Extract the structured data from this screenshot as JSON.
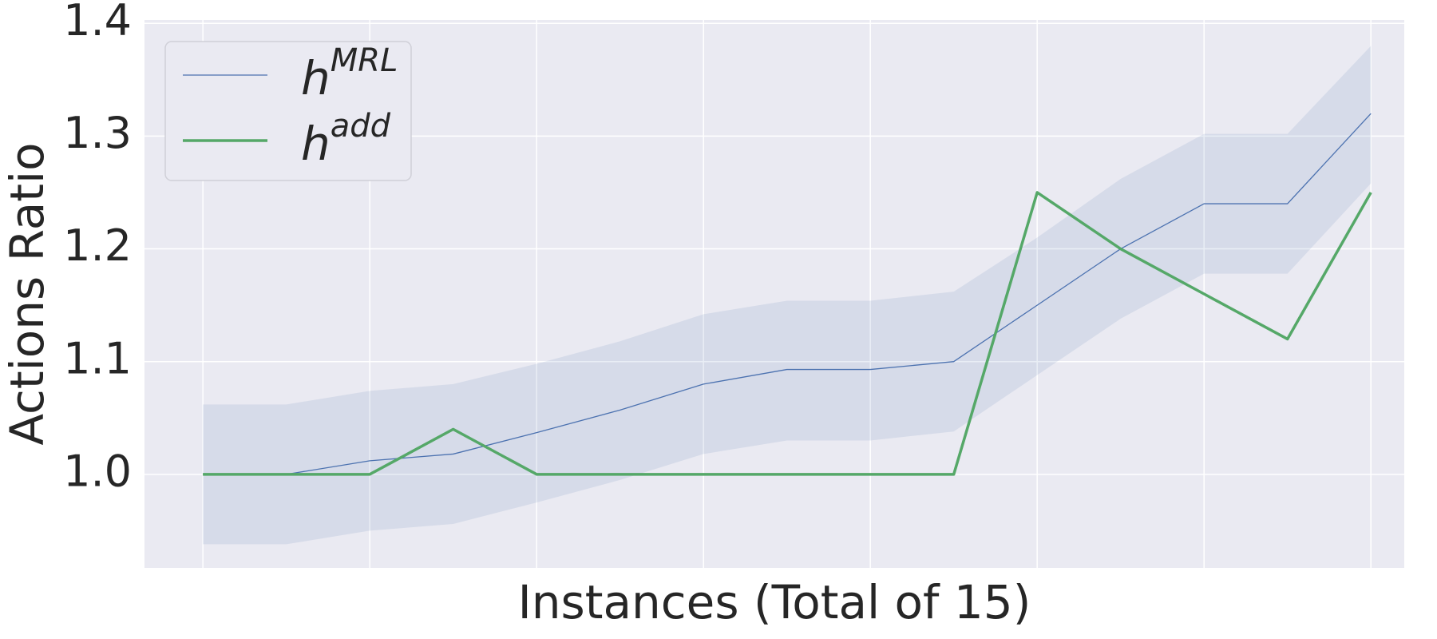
{
  "chart_data": {
    "type": "line",
    "xlabel": "Instances (Total of 15)",
    "ylabel": "Actions Ratio",
    "x": [
      0,
      1,
      2,
      3,
      4,
      5,
      6,
      7,
      8,
      9,
      10,
      11,
      12,
      13,
      14
    ],
    "xlim": [
      -0.7,
      14.4
    ],
    "xticks": [
      0,
      2,
      4,
      6,
      8,
      10,
      12,
      14
    ],
    "ylim": [
      0.917,
      1.403
    ],
    "yticks": [
      {
        "value": 1.0,
        "label": "1.0"
      },
      1.1,
      1.2,
      1.3,
      1.4
    ],
    "grid": true,
    "legend": "upper left",
    "series": [
      {
        "name": [
          "h",
          "MRL"
        ],
        "color": "#4c72b0",
        "line_width": 1.3,
        "values": [
          1.0,
          1.0,
          1.012,
          1.018,
          1.037,
          1.057,
          1.08,
          1.093,
          1.093,
          1.1,
          1.15,
          1.2,
          1.24,
          1.24,
          1.32
        ],
        "upper": [
          1.062,
          1.062,
          1.074,
          1.08,
          1.098,
          1.118,
          1.142,
          1.154,
          1.154,
          1.162,
          1.21,
          1.262,
          1.302,
          1.302,
          1.38
        ],
        "lower": [
          0.938,
          0.938,
          0.95,
          0.956,
          0.975,
          0.995,
          1.018,
          1.03,
          1.03,
          1.038,
          1.088,
          1.138,
          1.178,
          1.178,
          1.258
        ]
      },
      {
        "name": [
          "h",
          "add"
        ],
        "color": "#55a868",
        "line_width": 3.5,
        "values": [
          1.0,
          1.0,
          1.0,
          1.04,
          1.0,
          1.0,
          1.0,
          1.0,
          1.0,
          1.0,
          1.25,
          1.2,
          1.16,
          1.12,
          1.25
        ]
      }
    ]
  }
}
